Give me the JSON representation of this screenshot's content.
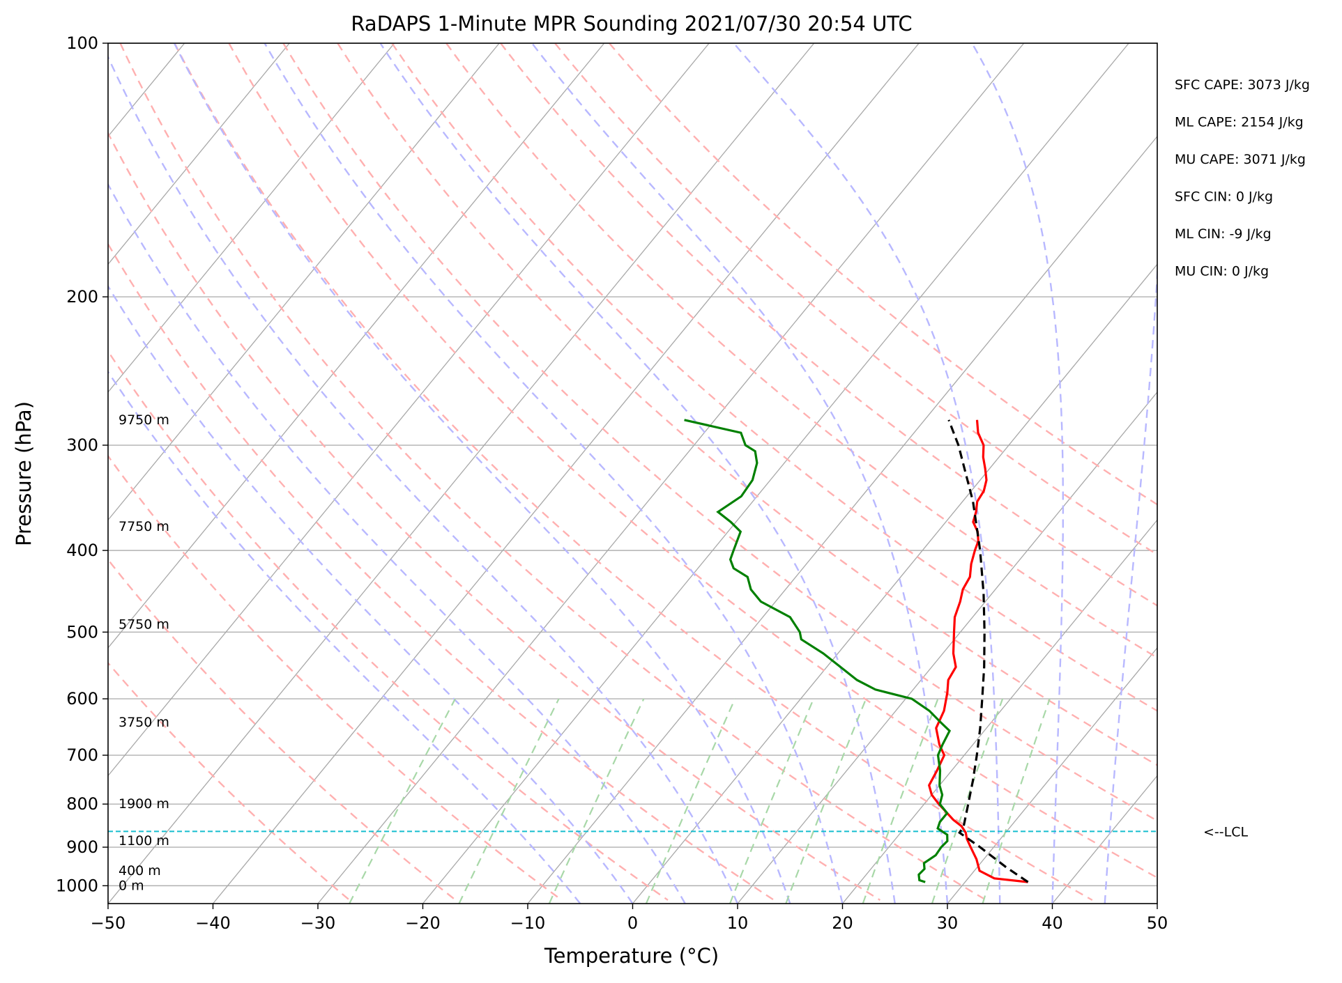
{
  "chart_data": {
    "type": "skew-t",
    "title": "RaDAPS 1-Minute MPR Sounding 2021/07/30 20:54 UTC",
    "xlabel": "Temperature (°C)",
    "ylabel": "Pressure (hPa)",
    "xlim": [
      -50,
      50
    ],
    "ylim": [
      1050,
      100
    ],
    "y_scale": "log",
    "grid": true,
    "x_ticks": [
      -50,
      -40,
      -30,
      -20,
      -10,
      0,
      10,
      20,
      30,
      40,
      50
    ],
    "x_tick_labels": [
      "−50",
      "−40",
      "−30",
      "−20",
      "−10",
      "0",
      "10",
      "20",
      "30",
      "40",
      "50"
    ],
    "y_ticks": [
      100,
      200,
      300,
      400,
      500,
      600,
      700,
      800,
      900,
      1000
    ],
    "y_tick_labels": [
      "100",
      "200",
      "300",
      "400",
      "500",
      "600",
      "700",
      "800",
      "900",
      "1000"
    ],
    "isotherm_temps": [
      -160,
      -150,
      -140,
      -130,
      -120,
      -110,
      -100,
      -90,
      -80,
      -70,
      -60,
      -50,
      -40,
      -30,
      -20,
      -10,
      0,
      10,
      20,
      30,
      40,
      50
    ],
    "dry_adiabat_thetas": [
      -30,
      -20,
      -10,
      0,
      10,
      20,
      30,
      40,
      50,
      60,
      70,
      80,
      90,
      100,
      110,
      120
    ],
    "moist_adiabat_starts": [
      -5,
      0,
      5,
      10,
      15,
      20,
      25,
      30,
      35,
      40,
      45
    ],
    "mixing_ratio_lines": [
      0.0004,
      0.001,
      0.002,
      0.004,
      0.007,
      0.01,
      0.016,
      0.024,
      0.032
    ],
    "series": [
      {
        "role": "temperature",
        "color": "#ff0000",
        "points": [
          [
            990,
            36.0
          ],
          [
            980,
            32.5
          ],
          [
            960,
            30.5
          ],
          [
            930,
            29.3
          ],
          [
            900,
            27.8
          ],
          [
            880,
            26.8
          ],
          [
            865,
            26.2
          ],
          [
            850,
            25.3
          ],
          [
            835,
            24.0
          ],
          [
            820,
            22.9
          ],
          [
            800,
            21.4
          ],
          [
            780,
            20.0
          ],
          [
            760,
            19.0
          ],
          [
            730,
            18.6
          ],
          [
            700,
            18.1
          ],
          [
            680,
            16.8
          ],
          [
            650,
            15.2
          ],
          [
            620,
            14.6
          ],
          [
            590,
            13.5
          ],
          [
            570,
            12.6
          ],
          [
            550,
            12.3
          ],
          [
            530,
            11.0
          ],
          [
            500,
            9.4
          ],
          [
            480,
            8.3
          ],
          [
            460,
            7.6
          ],
          [
            445,
            6.9
          ],
          [
            430,
            6.6
          ],
          [
            415,
            5.7
          ],
          [
            400,
            5.0
          ],
          [
            390,
            4.6
          ],
          [
            380,
            3.8
          ],
          [
            370,
            2.6
          ],
          [
            360,
            2.1
          ],
          [
            350,
            1.4
          ],
          [
            340,
            1.2
          ],
          [
            330,
            0.6
          ],
          [
            320,
            -0.4
          ],
          [
            310,
            -1.5
          ],
          [
            300,
            -2.4
          ],
          [
            290,
            -3.9
          ],
          [
            280,
            -5.0
          ]
        ]
      },
      {
        "role": "dewpoint",
        "color": "#008000",
        "points": [
          [
            990,
            26.2
          ],
          [
            985,
            25.5
          ],
          [
            970,
            25.0
          ],
          [
            955,
            25.1
          ],
          [
            940,
            24.6
          ],
          [
            920,
            25.1
          ],
          [
            900,
            25.0
          ],
          [
            885,
            25.1
          ],
          [
            870,
            24.6
          ],
          [
            855,
            23.2
          ],
          [
            840,
            22.9
          ],
          [
            820,
            22.9
          ],
          [
            800,
            21.5
          ],
          [
            780,
            21.0
          ],
          [
            760,
            20.0
          ],
          [
            730,
            18.9
          ],
          [
            700,
            17.5
          ],
          [
            680,
            17.1
          ],
          [
            655,
            16.7
          ],
          [
            640,
            15.2
          ],
          [
            620,
            13.2
          ],
          [
            600,
            10.6
          ],
          [
            585,
            6.4
          ],
          [
            570,
            3.9
          ],
          [
            550,
            1.3
          ],
          [
            530,
            -1.4
          ],
          [
            510,
            -4.6
          ],
          [
            500,
            -5.3
          ],
          [
            480,
            -7.4
          ],
          [
            460,
            -11.4
          ],
          [
            445,
            -13.3
          ],
          [
            430,
            -14.6
          ],
          [
            420,
            -16.6
          ],
          [
            410,
            -17.6
          ],
          [
            400,
            -18.0
          ],
          [
            380,
            -18.8
          ],
          [
            370,
            -20.5
          ],
          [
            360,
            -22.5
          ],
          [
            345,
            -21.5
          ],
          [
            330,
            -21.7
          ],
          [
            315,
            -22.6
          ],
          [
            305,
            -23.7
          ],
          [
            300,
            -25.1
          ],
          [
            290,
            -26.5
          ],
          [
            280,
            -32.9
          ]
        ]
      },
      {
        "role": "parcel",
        "color": "#000000",
        "dashed": true,
        "points": [
          [
            990,
            36.0
          ],
          [
            950,
            32.7
          ],
          [
            900,
            28.7
          ],
          [
            865,
            25.6
          ],
          [
            850,
            25.5
          ],
          [
            800,
            24.2
          ],
          [
            750,
            22.8
          ],
          [
            700,
            21.2
          ],
          [
            650,
            19.4
          ],
          [
            600,
            17.3
          ],
          [
            550,
            15.0
          ],
          [
            500,
            12.3
          ],
          [
            450,
            9.2
          ],
          [
            400,
            5.5
          ],
          [
            350,
            1.0
          ],
          [
            300,
            -4.8
          ],
          [
            280,
            -7.7
          ]
        ]
      }
    ],
    "lcl_pressure": 862,
    "lcl_label": "<--LCL",
    "height_labels": [
      {
        "pressure": 280,
        "text": "9750 m"
      },
      {
        "pressure": 375,
        "text": "7750 m"
      },
      {
        "pressure": 490,
        "text": "5750 m"
      },
      {
        "pressure": 640,
        "text": "3750 m"
      },
      {
        "pressure": 800,
        "text": "1900 m"
      },
      {
        "pressure": 885,
        "text": "1100 m"
      },
      {
        "pressure": 960,
        "text": "400 m"
      },
      {
        "pressure": 1000,
        "text": "0 m"
      }
    ],
    "stats": [
      "SFC CAPE: 3073 J/kg",
      "ML CAPE: 2154 J/kg",
      "MU CAPE: 3071 J/kg",
      "SFC CIN: 0 J/kg",
      "ML CIN: -9 J/kg",
      "MU CIN: 0 J/kg"
    ],
    "colors": {
      "grid": "#b0b0b0",
      "isotherm": "#a8a8a8",
      "dry_adiabat": "#ffb0b0",
      "moist_adiabat": "#b8b8ff",
      "mixing_ratio": "#a8d8a8",
      "lcl": "#17becf"
    }
  }
}
